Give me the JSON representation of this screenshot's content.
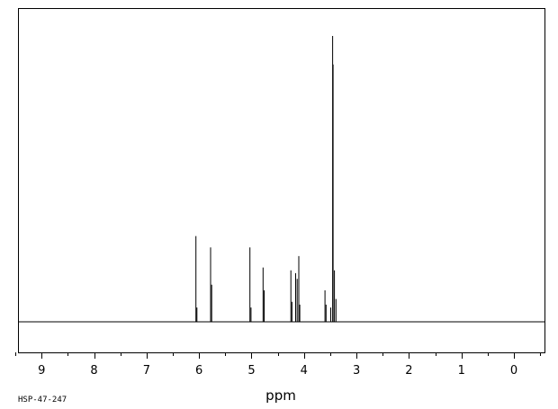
{
  "chart_data": {
    "type": "line",
    "xlabel": "ppm",
    "ylabel": "",
    "title": "",
    "xlim": [
      9.45,
      -0.6
    ],
    "x_reversed": true,
    "ylim": [
      0,
      1
    ],
    "x_ticks": [
      9,
      8,
      7,
      6,
      5,
      4,
      3,
      2,
      1,
      0
    ],
    "x_tick_labels": [
      "9",
      "8",
      "7",
      "6",
      "5",
      "4",
      "3",
      "2",
      "1",
      "0"
    ],
    "grid": false,
    "line_color": "#000000",
    "peaks": [
      {
        "x": 6.06,
        "h": 0.3
      },
      {
        "x": 6.04,
        "h": 0.05
      },
      {
        "x": 5.78,
        "h": 0.26
      },
      {
        "x": 5.76,
        "h": 0.13
      },
      {
        "x": 5.03,
        "h": 0.26
      },
      {
        "x": 5.01,
        "h": 0.05
      },
      {
        "x": 4.78,
        "h": 0.19
      },
      {
        "x": 4.76,
        "h": 0.11
      },
      {
        "x": 4.25,
        "h": 0.18
      },
      {
        "x": 4.23,
        "h": 0.07
      },
      {
        "x": 4.16,
        "h": 0.17
      },
      {
        "x": 4.13,
        "h": 0.15
      },
      {
        "x": 4.1,
        "h": 0.23
      },
      {
        "x": 4.08,
        "h": 0.06
      },
      {
        "x": 3.6,
        "h": 0.11
      },
      {
        "x": 3.58,
        "h": 0.06
      },
      {
        "x": 3.49,
        "h": 0.05
      },
      {
        "x": 3.455,
        "h": 1.0
      },
      {
        "x": 3.445,
        "h": 0.9
      },
      {
        "x": 3.42,
        "h": 0.18
      },
      {
        "x": 3.39,
        "h": 0.08
      }
    ]
  },
  "footer": {
    "code": "HSP-47-247"
  }
}
